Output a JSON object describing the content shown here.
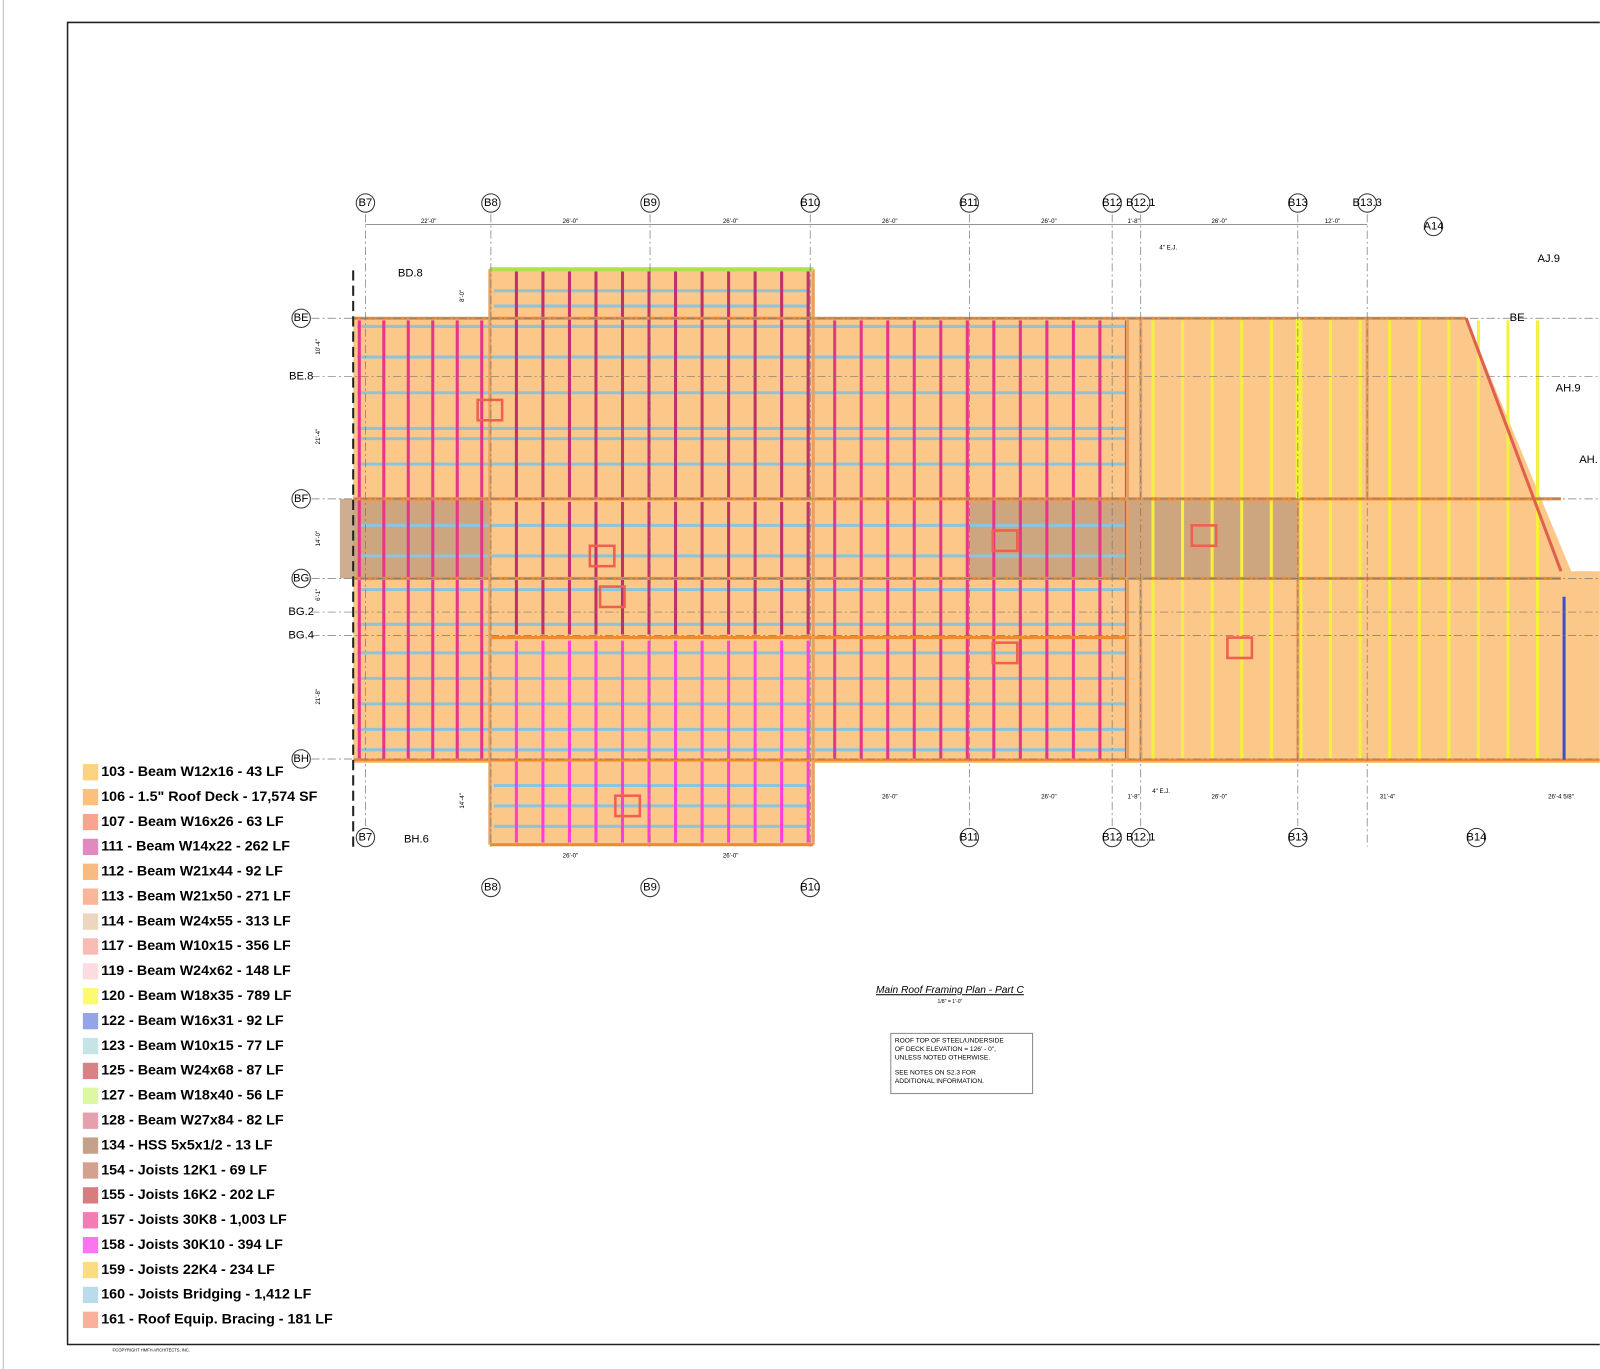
{
  "drawing": {
    "title": "Main Roof Framing Plan - Part C",
    "scale": "1/8\" = 1'-0\"",
    "notes": [
      "ROOF TOP OF STEEL/UNDERSIDE",
      "OF DECK ELEVATION = 126' - 0\",",
      "UNLESS NOTED OTHERWISE.",
      "SEE NOTES ON S2.3 FOR",
      "ADDITIONAL INFORMATION."
    ],
    "copyright": "©COPYRIGHT HMFH ARCHITECTS, INC.",
    "grid_top": [
      "B7",
      "B8",
      "B9",
      "B10",
      "B11",
      "B12",
      "B12.1",
      "B13",
      "B13.3",
      "A14"
    ],
    "grid_left": [
      "BE",
      "BE.8",
      "BF",
      "BG",
      "BG.2",
      "BG.4",
      "BH",
      "BD.8"
    ],
    "grid_bottom": [
      "B7",
      "BH.6",
      "B8",
      "B9",
      "B10",
      "B11",
      "B12",
      "B12.1",
      "B13",
      "B14"
    ],
    "grid_right": [
      "BE",
      "AJ.9",
      "AH.9",
      "AH."
    ],
    "dims_top": [
      "22'-0\"",
      "26'-0\"",
      "26'-0\"",
      "26'-0\"",
      "26'-0\"",
      "1'-8\"",
      "26'-0\"",
      "12'-0\""
    ],
    "dims_bottom": [
      "26'-0\"",
      "26'-0\"",
      "1'-8\"",
      "26'-0\"",
      "31'-4\"",
      "26'-4 5/8\"",
      "26'-0\"",
      "26'-0\""
    ],
    "dims_left": [
      "10'-4\"",
      "21'-4\"",
      "14'-0\"",
      "6'-1\"",
      "21'-8\"",
      "8'-0\"",
      "14'-4\""
    ],
    "annotations": [
      "4\" E.J.",
      "4\" E.J."
    ]
  },
  "legend": {
    "items": [
      {
        "label": "103 - Beam W12x16 - 43 LF",
        "color": "#fdd27e"
      },
      {
        "label": "106 - 1.5\" Roof Deck - 17,574 SF",
        "color": "#fbc07a"
      },
      {
        "label": "107 - Beam W16x26 - 63 LF",
        "color": "#f8a48e"
      },
      {
        "label": "111 - Beam W14x22 - 262 LF",
        "color": "#e08ac0"
      },
      {
        "label": "112 - Beam W21x44 - 92 LF",
        "color": "#f8bc80"
      },
      {
        "label": "113 - Beam W21x50 - 271 LF",
        "color": "#fbb69a"
      },
      {
        "label": "114 - Beam W24x55 - 313 LF",
        "color": "#ecd6c0"
      },
      {
        "label": "117 - Beam W10x15 - 356 LF",
        "color": "#f8bcb4"
      },
      {
        "label": "119 - Beam W24x62 - 148 LF",
        "color": "#fcdce0"
      },
      {
        "label": "120 - Beam W18x35 - 789 LF",
        "color": "#fcfa70"
      },
      {
        "label": "122 - Beam W16x31 - 92 LF",
        "color": "#94a4e8"
      },
      {
        "label": "123 - Beam W10x15 - 77 LF",
        "color": "#c4e4e8"
      },
      {
        "label": "125 - Beam W24x68 - 87 LF",
        "color": "#dc8088"
      },
      {
        "label": "127 - Beam W18x40 - 56 LF",
        "color": "#dcf8a0"
      },
      {
        "label": "128 - Beam W27x84 - 82 LF",
        "color": "#e4a0ac"
      },
      {
        "label": "134 - HSS 5x5x1/2 - 13 LF",
        "color": "#c4a088"
      },
      {
        "label": "154 - Joists 12K1 - 69 LF",
        "color": "#d4a090"
      },
      {
        "label": "155 - Joists 16K2 - 202 LF",
        "color": "#d87c80"
      },
      {
        "label": "157 - Joists 30K8 - 1,003 LF",
        "color": "#f47cb4"
      },
      {
        "label": "158 - Joists 30K10 - 394 LF",
        "color": "#fc74f0"
      },
      {
        "label": "159 - Joists 22K4 - 234 LF",
        "color": "#fcdc80"
      },
      {
        "label": "160 - Joists Bridging - 1,412 LF",
        "color": "#b8dcec"
      },
      {
        "label": "161 - Roof Equip. Bracing - 181 LF",
        "color": "#fcb09c"
      }
    ]
  }
}
